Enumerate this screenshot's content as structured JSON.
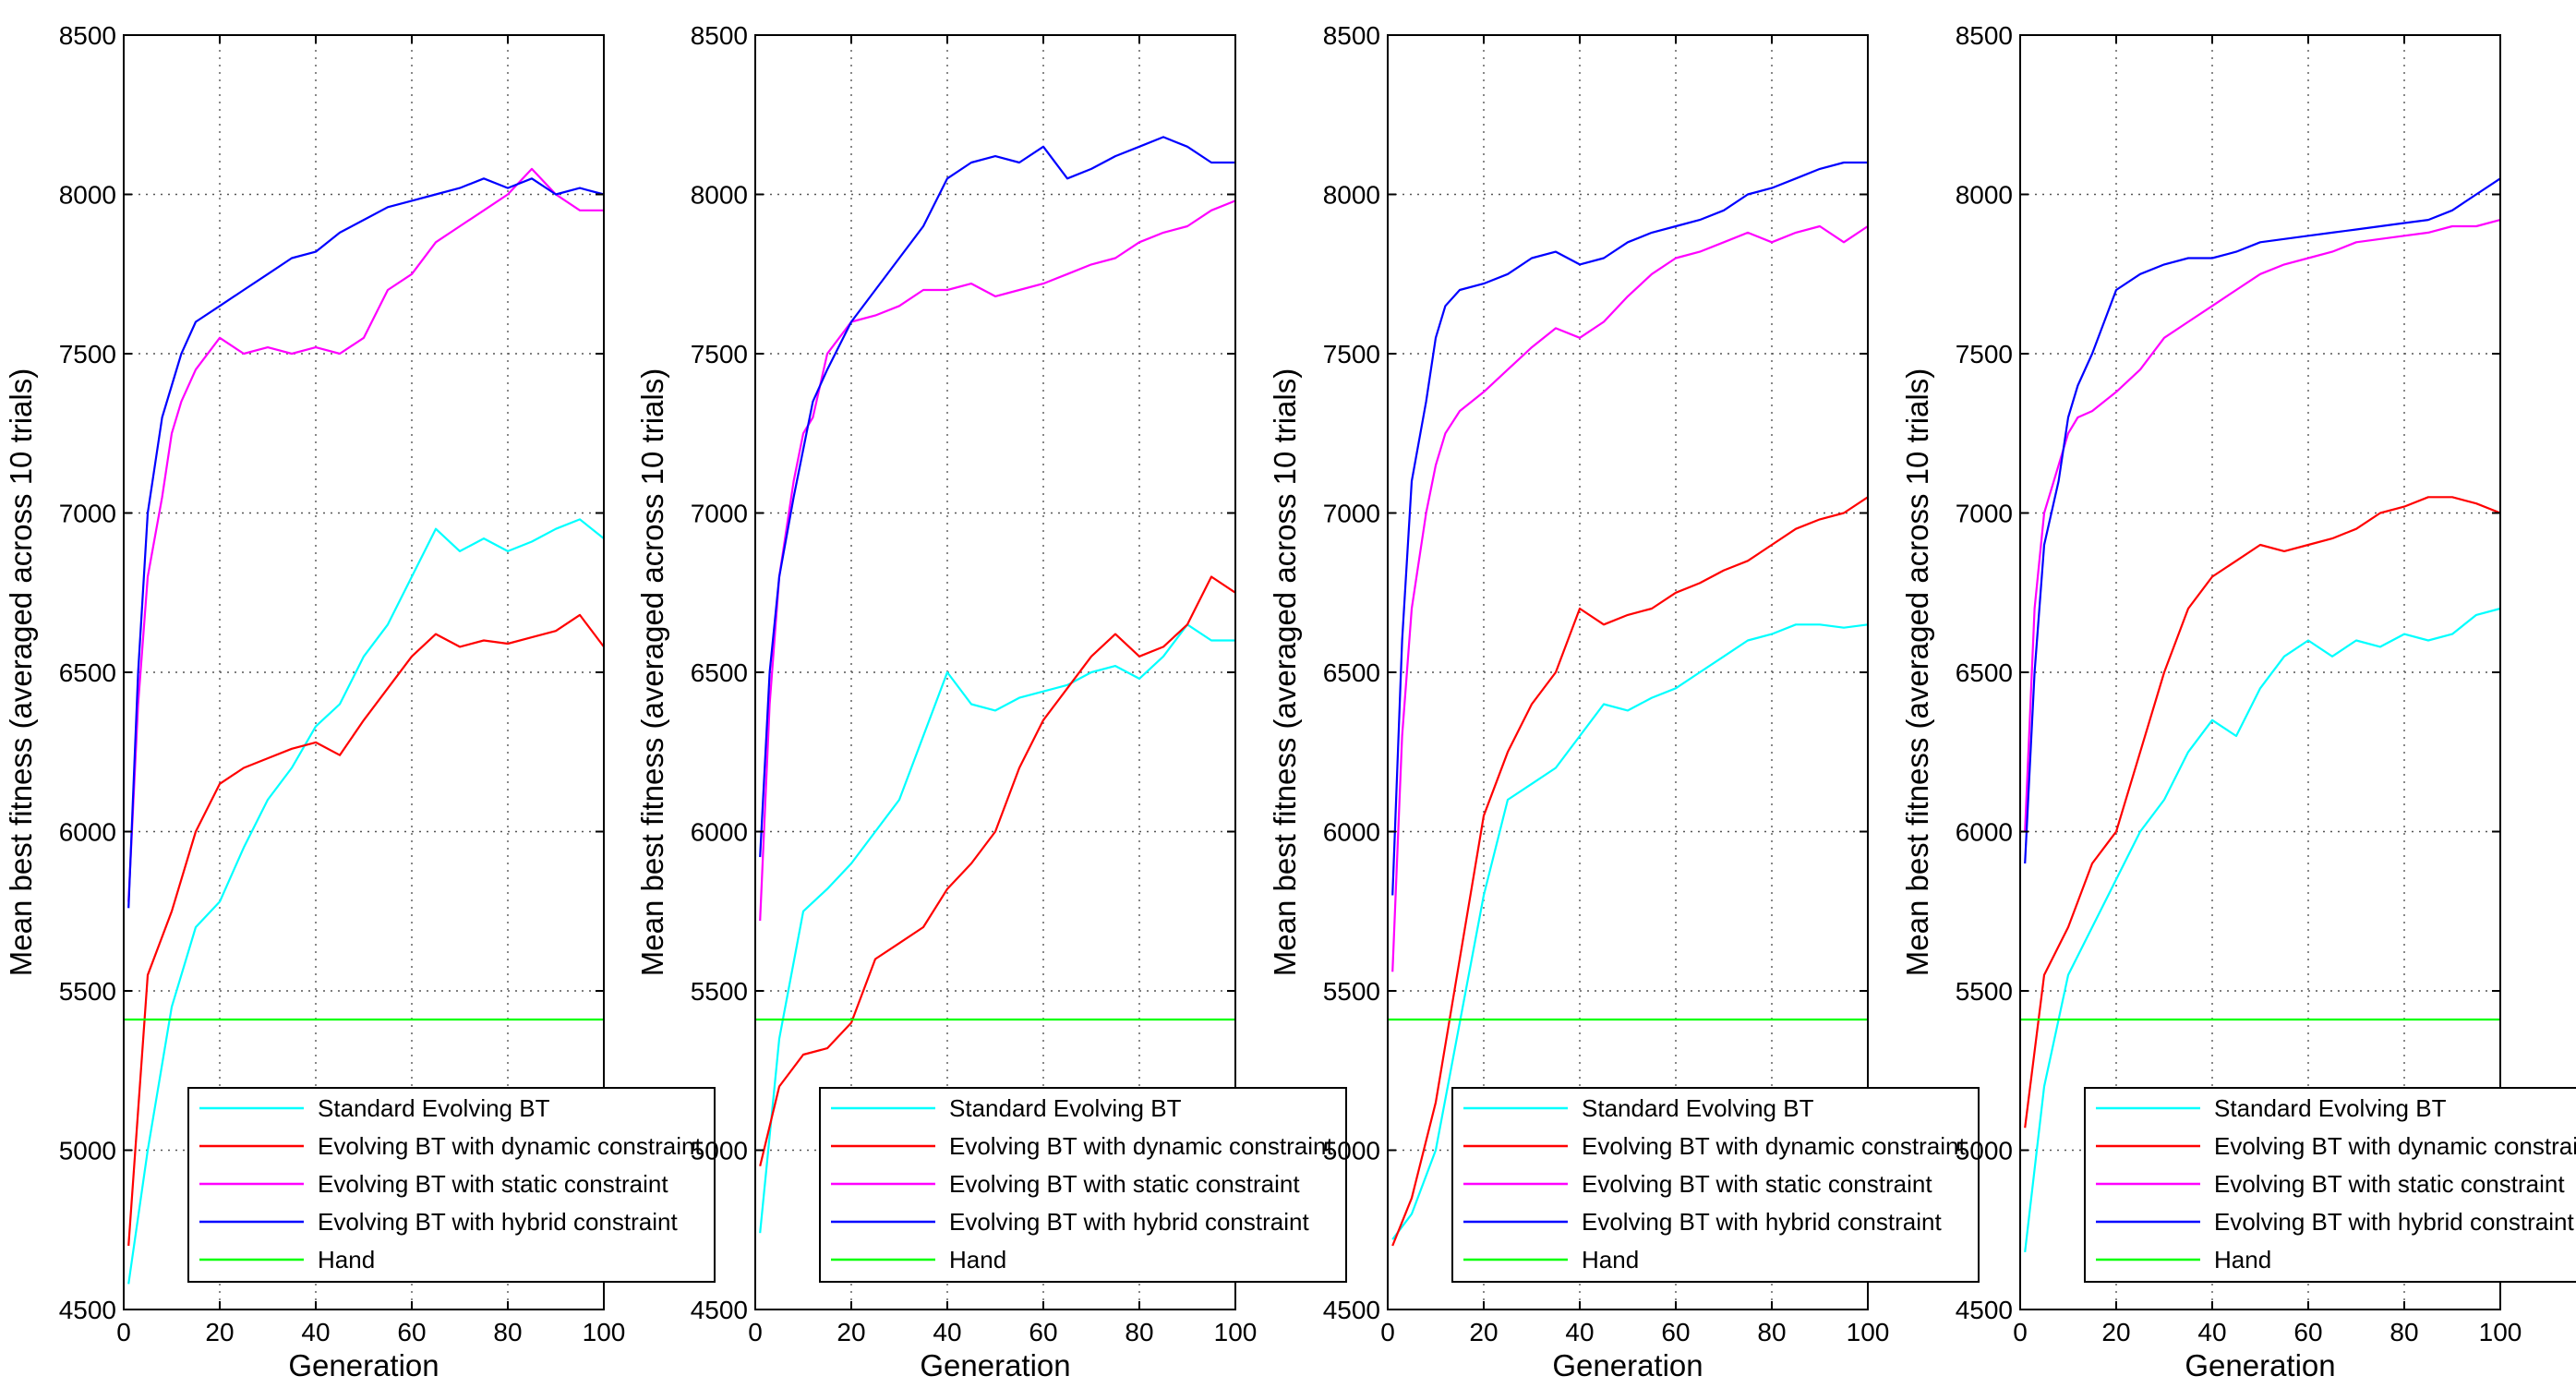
{
  "chart_data": [
    {
      "type": "line",
      "panel": "panel-1",
      "xlabel": "Generation",
      "ylabel": "Mean best fitness (averaged across 10 trials)",
      "xlim": [
        0,
        100
      ],
      "ylim": [
        4500,
        8500
      ],
      "xticks": [
        "0",
        "20",
        "40",
        "60",
        "80",
        "100"
      ],
      "yticks": [
        "4500",
        "5000",
        "5500",
        "6000",
        "6500",
        "7000",
        "7500",
        "8000",
        "8500"
      ],
      "grid": true,
      "legend_position": "bottom-right",
      "series": [
        {
          "name": "Standard Evolving BT",
          "color": "#00ffff",
          "x": [
            1,
            5,
            10,
            15,
            20,
            25,
            30,
            35,
            40,
            45,
            50,
            55,
            60,
            65,
            70,
            75,
            80,
            85,
            90,
            95,
            100
          ],
          "values": [
            4580,
            5000,
            5450,
            5700,
            5780,
            5950,
            6100,
            6200,
            6330,
            6400,
            6550,
            6650,
            6800,
            6950,
            6880,
            6920,
            6880,
            6910,
            6950,
            6980,
            6920
          ]
        },
        {
          "name": "Evolving BT with dynamic constraint",
          "color": "#ff0000",
          "x": [
            1,
            5,
            10,
            15,
            20,
            25,
            30,
            35,
            40,
            45,
            50,
            55,
            60,
            65,
            70,
            75,
            80,
            85,
            90,
            95,
            100
          ],
          "values": [
            4700,
            5550,
            5750,
            6000,
            6150,
            6200,
            6230,
            6260,
            6280,
            6240,
            6350,
            6450,
            6550,
            6620,
            6580,
            6600,
            6590,
            6610,
            6630,
            6680,
            6580
          ]
        },
        {
          "name": "Evolving BT with static constraint",
          "color": "#ff00ff",
          "x": [
            1,
            3,
            5,
            8,
            10,
            12,
            15,
            20,
            25,
            30,
            35,
            40,
            45,
            50,
            55,
            60,
            65,
            70,
            75,
            80,
            85,
            90,
            95,
            100
          ],
          "values": [
            5780,
            6400,
            6800,
            7050,
            7250,
            7350,
            7450,
            7550,
            7500,
            7520,
            7500,
            7520,
            7500,
            7550,
            7700,
            7750,
            7850,
            7900,
            7950,
            8000,
            8080,
            8000,
            7950,
            7950
          ]
        },
        {
          "name": "Evolving BT with hybrid constraint",
          "color": "#0000ff",
          "x": [
            1,
            3,
            5,
            8,
            10,
            12,
            15,
            20,
            25,
            30,
            35,
            40,
            45,
            50,
            55,
            60,
            65,
            70,
            75,
            80,
            85,
            90,
            95,
            100
          ],
          "values": [
            5760,
            6500,
            7000,
            7300,
            7400,
            7500,
            7600,
            7650,
            7700,
            7750,
            7800,
            7820,
            7880,
            7920,
            7960,
            7980,
            8000,
            8020,
            8050,
            8020,
            8050,
            8000,
            8020,
            8000
          ]
        },
        {
          "name": "Hand",
          "color": "#00ff00",
          "x": [
            0,
            100
          ],
          "values": [
            5410,
            5410
          ]
        }
      ]
    },
    {
      "type": "line",
      "panel": "panel-2",
      "xlabel": "Generation",
      "ylabel": "Mean best fitness (averaged across 10 trials)",
      "xlim": [
        0,
        100
      ],
      "ylim": [
        4500,
        8500
      ],
      "xticks": [
        "0",
        "20",
        "40",
        "60",
        "80",
        "100"
      ],
      "yticks": [
        "4500",
        "5000",
        "5500",
        "6000",
        "6500",
        "7000",
        "7500",
        "8000",
        "8500"
      ],
      "grid": true,
      "legend_position": "bottom-right",
      "series": [
        {
          "name": "Standard Evolving BT",
          "color": "#00ffff",
          "x": [
            1,
            5,
            10,
            15,
            20,
            25,
            30,
            35,
            40,
            45,
            50,
            55,
            60,
            65,
            70,
            75,
            80,
            85,
            90,
            95,
            100
          ],
          "values": [
            4740,
            5350,
            5750,
            5820,
            5900,
            6000,
            6100,
            6300,
            6500,
            6400,
            6380,
            6420,
            6440,
            6460,
            6500,
            6520,
            6480,
            6550,
            6650,
            6600,
            6600
          ]
        },
        {
          "name": "Evolving BT with dynamic constraint",
          "color": "#ff0000",
          "x": [
            1,
            5,
            10,
            15,
            20,
            25,
            30,
            35,
            40,
            45,
            50,
            55,
            60,
            65,
            70,
            75,
            80,
            85,
            90,
            95,
            100
          ],
          "values": [
            4950,
            5200,
            5300,
            5320,
            5400,
            5600,
            5650,
            5700,
            5820,
            5900,
            6000,
            6200,
            6350,
            6450,
            6550,
            6620,
            6550,
            6580,
            6650,
            6800,
            6750
          ]
        },
        {
          "name": "Evolving BT with static constraint",
          "color": "#ff00ff",
          "x": [
            1,
            3,
            5,
            8,
            10,
            12,
            15,
            20,
            25,
            30,
            35,
            40,
            45,
            50,
            55,
            60,
            65,
            70,
            75,
            80,
            85,
            90,
            95,
            100
          ],
          "values": [
            5720,
            6400,
            6800,
            7100,
            7250,
            7300,
            7500,
            7600,
            7620,
            7650,
            7700,
            7700,
            7720,
            7680,
            7700,
            7720,
            7750,
            7780,
            7800,
            7850,
            7880,
            7900,
            7950,
            7980
          ]
        },
        {
          "name": "Evolving BT with hybrid constraint",
          "color": "#0000ff",
          "x": [
            1,
            3,
            5,
            8,
            10,
            12,
            15,
            20,
            25,
            30,
            35,
            40,
            45,
            50,
            55,
            60,
            65,
            70,
            75,
            80,
            85,
            90,
            95,
            100
          ],
          "values": [
            5920,
            6500,
            6800,
            7050,
            7200,
            7350,
            7450,
            7600,
            7700,
            7800,
            7900,
            8050,
            8100,
            8120,
            8100,
            8150,
            8050,
            8080,
            8120,
            8150,
            8180,
            8150,
            8100,
            8100
          ]
        },
        {
          "name": "Hand",
          "color": "#00ff00",
          "x": [
            0,
            100
          ],
          "values": [
            5410,
            5410
          ]
        }
      ]
    },
    {
      "type": "line",
      "panel": "panel-3",
      "xlabel": "Generation",
      "ylabel": "Mean best fitness (averaged across 10 trials)",
      "xlim": [
        0,
        100
      ],
      "ylim": [
        4500,
        8500
      ],
      "xticks": [
        "0",
        "20",
        "40",
        "60",
        "80",
        "100"
      ],
      "yticks": [
        "4500",
        "5000",
        "5500",
        "6000",
        "6500",
        "7000",
        "7500",
        "8000",
        "8500"
      ],
      "grid": true,
      "legend_position": "bottom-right",
      "series": [
        {
          "name": "Standard Evolving BT",
          "color": "#00ffff",
          "x": [
            1,
            5,
            10,
            15,
            20,
            25,
            30,
            35,
            40,
            45,
            50,
            55,
            60,
            65,
            70,
            75,
            80,
            85,
            90,
            95,
            100
          ],
          "values": [
            4720,
            4800,
            5000,
            5400,
            5800,
            6100,
            6150,
            6200,
            6300,
            6400,
            6380,
            6420,
            6450,
            6500,
            6550,
            6600,
            6620,
            6650,
            6650,
            6640,
            6650
          ]
        },
        {
          "name": "Evolving BT with dynamic constraint",
          "color": "#ff0000",
          "x": [
            1,
            5,
            10,
            15,
            20,
            25,
            30,
            35,
            40,
            45,
            50,
            55,
            60,
            65,
            70,
            75,
            80,
            85,
            90,
            95,
            100
          ],
          "values": [
            4700,
            4850,
            5150,
            5600,
            6050,
            6250,
            6400,
            6500,
            6700,
            6650,
            6680,
            6700,
            6750,
            6780,
            6820,
            6850,
            6900,
            6950,
            6980,
            7000,
            7050
          ]
        },
        {
          "name": "Evolving BT with static constraint",
          "color": "#ff00ff",
          "x": [
            1,
            3,
            5,
            8,
            10,
            12,
            15,
            20,
            25,
            30,
            35,
            40,
            45,
            50,
            55,
            60,
            65,
            70,
            75,
            80,
            85,
            90,
            95,
            100
          ],
          "values": [
            5560,
            6300,
            6700,
            7000,
            7150,
            7250,
            7320,
            7380,
            7450,
            7520,
            7580,
            7550,
            7600,
            7680,
            7750,
            7800,
            7820,
            7850,
            7880,
            7850,
            7880,
            7900,
            7850,
            7900
          ]
        },
        {
          "name": "Evolving BT with hybrid constraint",
          "color": "#0000ff",
          "x": [
            1,
            3,
            5,
            8,
            10,
            12,
            15,
            20,
            25,
            30,
            35,
            40,
            45,
            50,
            55,
            60,
            65,
            70,
            75,
            80,
            85,
            90,
            95,
            100
          ],
          "values": [
            5800,
            6600,
            7100,
            7350,
            7550,
            7650,
            7700,
            7720,
            7750,
            7800,
            7820,
            7780,
            7800,
            7850,
            7880,
            7900,
            7920,
            7950,
            8000,
            8020,
            8050,
            8080,
            8100,
            8100
          ]
        },
        {
          "name": "Hand",
          "color": "#00ff00",
          "x": [
            0,
            100
          ],
          "values": [
            5410,
            5410
          ]
        }
      ]
    },
    {
      "type": "line",
      "panel": "panel-4",
      "xlabel": "Generation",
      "ylabel": "Mean best fitness (averaged across 10 trials)",
      "xlim": [
        0,
        100
      ],
      "ylim": [
        4500,
        8500
      ],
      "xticks": [
        "0",
        "20",
        "40",
        "60",
        "80",
        "100"
      ],
      "yticks": [
        "4500",
        "5000",
        "5500",
        "6000",
        "6500",
        "7000",
        "7500",
        "8000",
        "8500"
      ],
      "grid": true,
      "legend_position": "bottom-right",
      "series": [
        {
          "name": "Standard Evolving BT",
          "color": "#00ffff",
          "x": [
            1,
            5,
            10,
            15,
            20,
            25,
            30,
            35,
            40,
            45,
            50,
            55,
            60,
            65,
            70,
            75,
            80,
            85,
            90,
            95,
            100
          ],
          "values": [
            4680,
            5200,
            5550,
            5700,
            5850,
            6000,
            6100,
            6250,
            6350,
            6300,
            6450,
            6550,
            6600,
            6550,
            6600,
            6580,
            6620,
            6600,
            6620,
            6680,
            6700
          ]
        },
        {
          "name": "Evolving BT with dynamic constraint",
          "color": "#ff0000",
          "x": [
            1,
            5,
            10,
            15,
            20,
            25,
            30,
            35,
            40,
            45,
            50,
            55,
            60,
            65,
            70,
            75,
            80,
            85,
            90,
            95,
            100
          ],
          "values": [
            5070,
            5550,
            5700,
            5900,
            6000,
            6250,
            6500,
            6700,
            6800,
            6850,
            6900,
            6880,
            6900,
            6920,
            6950,
            7000,
            7020,
            7050,
            7050,
            7030,
            7000
          ]
        },
        {
          "name": "Evolving BT with static constraint",
          "color": "#ff00ff",
          "x": [
            1,
            3,
            5,
            8,
            10,
            12,
            15,
            20,
            25,
            30,
            35,
            40,
            45,
            50,
            55,
            60,
            65,
            70,
            75,
            80,
            85,
            90,
            95,
            100
          ],
          "values": [
            6000,
            6700,
            7000,
            7150,
            7250,
            7300,
            7320,
            7380,
            7450,
            7550,
            7600,
            7650,
            7700,
            7750,
            7780,
            7800,
            7820,
            7850,
            7860,
            7870,
            7880,
            7900,
            7900,
            7920
          ]
        },
        {
          "name": "Evolving BT with hybrid constraint",
          "color": "#0000ff",
          "x": [
            1,
            3,
            5,
            8,
            10,
            12,
            15,
            20,
            25,
            30,
            35,
            40,
            45,
            50,
            55,
            60,
            65,
            70,
            75,
            80,
            85,
            90,
            95,
            100
          ],
          "values": [
            5900,
            6500,
            6900,
            7100,
            7300,
            7400,
            7500,
            7700,
            7750,
            7780,
            7800,
            7800,
            7820,
            7850,
            7860,
            7870,
            7880,
            7890,
            7900,
            7910,
            7920,
            7950,
            8000,
            8050
          ]
        },
        {
          "name": "Hand",
          "color": "#00ff00",
          "x": [
            0,
            100
          ],
          "values": [
            5410,
            5410
          ]
        }
      ]
    }
  ]
}
